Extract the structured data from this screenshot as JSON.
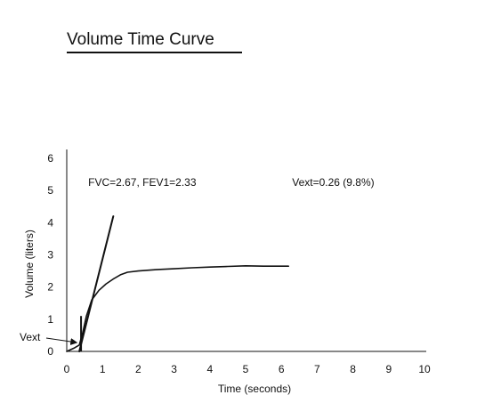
{
  "title": "Volume Time Curve",
  "chart_data": {
    "type": "line",
    "title": "Volume Time Curve",
    "xlabel": "Time (seconds)",
    "ylabel": "Volume (liters)",
    "xlim": [
      0,
      10
    ],
    "ylim": [
      0,
      6
    ],
    "xticks": [
      0,
      1,
      2,
      3,
      4,
      5,
      6,
      7,
      8,
      9,
      10
    ],
    "yticks": [
      0,
      1,
      2,
      3,
      4,
      5,
      6
    ],
    "grid": false,
    "series": [
      {
        "name": "",
        "role": "volume-curve",
        "x": [
          0,
          0.2,
          0.35,
          0.45,
          0.55,
          0.7,
          0.9,
          1.1,
          1.3,
          1.5,
          1.7,
          2.0,
          2.5,
          3.0,
          3.5,
          4.0,
          4.5,
          5.0,
          5.5,
          6.2
        ],
        "y": [
          0,
          0.1,
          0.2,
          0.6,
          1.1,
          1.6,
          1.9,
          2.1,
          2.25,
          2.38,
          2.46,
          2.5,
          2.54,
          2.57,
          2.6,
          2.62,
          2.64,
          2.66,
          2.65,
          2.65
        ]
      },
      {
        "name": "",
        "role": "back-extrapolation-line",
        "x": [
          0.35,
          1.3
        ],
        "y": [
          0,
          4.2
        ]
      }
    ],
    "annotations": [
      {
        "text": "FVC=2.67, FEV1=2.33",
        "x": 0.6,
        "y": 5.3
      },
      {
        "text": "Vext=0.26 (9.8%)",
        "x": 6.3,
        "y": 5.3
      },
      {
        "text": "Vext",
        "x": -1.3,
        "y": 0.45,
        "arrow_to": [
          0.28,
          0.22
        ]
      }
    ],
    "markers": [
      {
        "type": "vertical-tick",
        "x": 0.4,
        "y0": 0,
        "y1": 1.1
      }
    ]
  }
}
